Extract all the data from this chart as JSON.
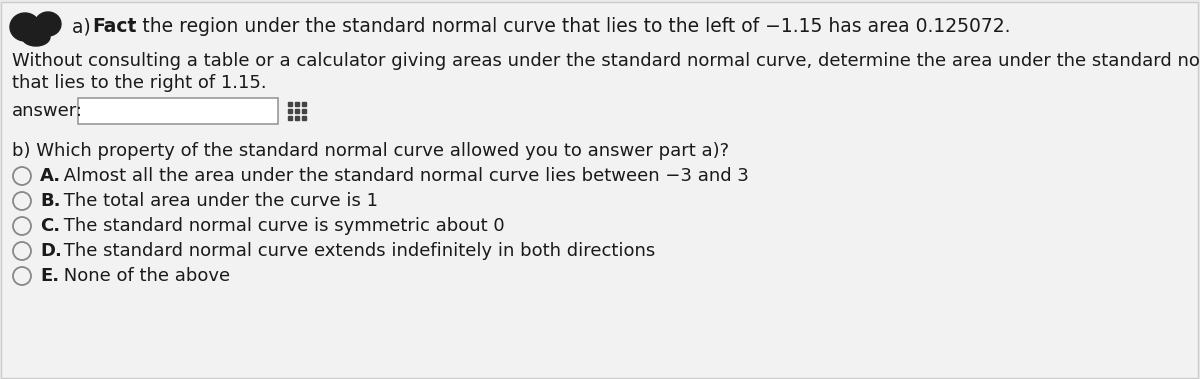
{
  "bg_color": "#ebebeb",
  "content_bg": "#f2f2f2",
  "border_color": "#cccccc",
  "text_color": "#1a1a1a",
  "line1a": "a) ",
  "line1b": "Fact",
  "line1c": ": the region under the standard normal curve that lies to the left of −1.15 has area 0.125072.",
  "line2": "Without consulting a table or a calculator giving areas under the standard normal curve, determine the area under the standard normal curve",
  "line3": "that lies to the right of 1.15.",
  "answer_label": "answer:",
  "part_b": "b) Which property of the standard normal curve allowed you to answer part a)?",
  "option_a_bold": "A.",
  "option_a_rest": " Almost all the area under the standard normal curve lies between −3 and 3",
  "option_b_bold": "B.",
  "option_b_rest": " The total area under the curve is 1",
  "option_c_bold": "C.",
  "option_c_rest": " The standard normal curve is symmetric about 0",
  "option_d_bold": "D.",
  "option_d_rest": " The standard normal curve extends indefinitely in both directions",
  "option_e_bold": "E.",
  "option_e_rest": " None of the above",
  "fs_main": 13.5,
  "fs_small": 13.0,
  "fig_width": 12.0,
  "fig_height": 3.79
}
